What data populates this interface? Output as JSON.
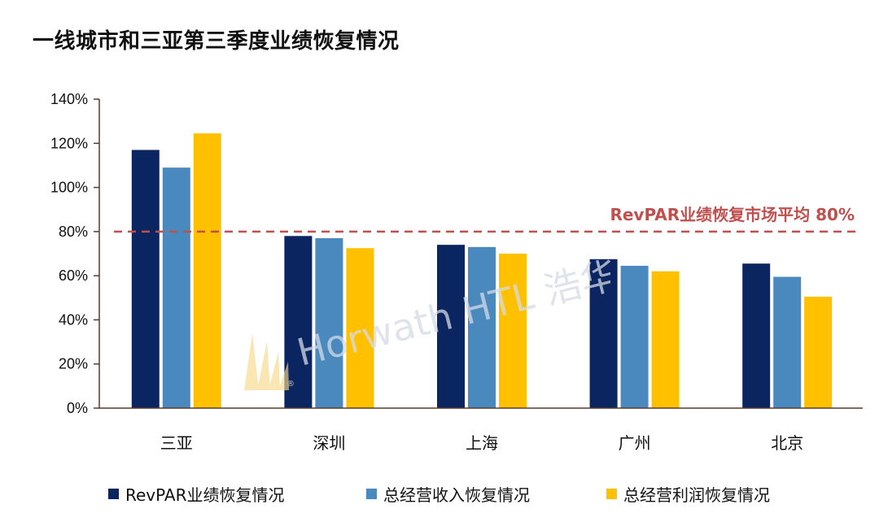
{
  "title": "一线城市和三亚第三季度业绩恢复情况",
  "colors": {
    "revpar": "#0b2560",
    "revenue": "#4a89bd",
    "profit": "#ffc000",
    "reference": "#c0504d",
    "axis": "#5a3a2a"
  },
  "watermark": {
    "text": "Horwath HTL 浩华",
    "mark": "®"
  },
  "chart_data": {
    "type": "bar",
    "title": "一线城市和三亚第三季度业绩恢复情况",
    "categories": [
      "三亚",
      "深圳",
      "上海",
      "广州",
      "北京"
    ],
    "series": [
      {
        "name": "RevPAR业绩恢复情况",
        "values": [
          117,
          78,
          74,
          67.5,
          65.5
        ],
        "color": "#0b2560"
      },
      {
        "name": "总经营收入恢复情况",
        "values": [
          109,
          77,
          73,
          64.5,
          59.5
        ],
        "color": "#4a89bd"
      },
      {
        "name": "总经营利润恢复情况",
        "values": [
          124.5,
          72.5,
          70,
          62,
          50.5
        ],
        "color": "#ffc000"
      }
    ],
    "yticks": [
      "0%",
      "20%",
      "40%",
      "60%",
      "80%",
      "100%",
      "120%",
      "140%"
    ],
    "ylim": [
      0,
      140
    ],
    "reference_line": {
      "value": 80,
      "label": "RevPAR业绩恢复市场平均 80%"
    },
    "legend_position": "bottom",
    "grid": false,
    "xlabel": "",
    "ylabel": ""
  }
}
